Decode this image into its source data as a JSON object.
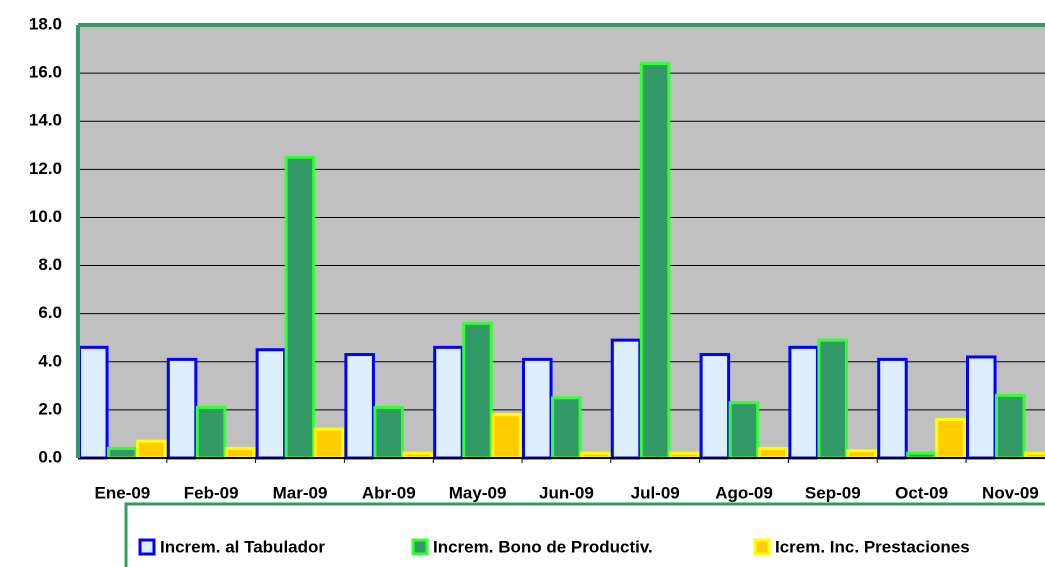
{
  "chart_data": {
    "type": "bar",
    "categories": [
      "Ene-09",
      "Feb-09",
      "Mar-09",
      "Abr-09",
      "May-09",
      "Jun-09",
      "Jul-09",
      "Ago-09",
      "Sep-09",
      "Oct-09",
      "Nov-09"
    ],
    "series": [
      {
        "name": "Increm. al Tabulador",
        "color": "#ddeeff",
        "stroke": "#0000ff",
        "values": [
          4.6,
          4.1,
          4.5,
          4.3,
          4.6,
          4.1,
          4.9,
          4.3,
          4.6,
          4.1,
          4.2
        ]
      },
      {
        "name": "Increm. Bono de Productiv.",
        "color": "#339966",
        "stroke": "#33ff33",
        "values": [
          0.4,
          2.1,
          12.5,
          2.1,
          5.6,
          2.5,
          16.4,
          2.3,
          4.9,
          0.2,
          2.6
        ]
      },
      {
        "name": "Icrem. Inc. Prestaciones",
        "color": "#ffcc00",
        "stroke": "#ffff00",
        "values": [
          0.7,
          0.4,
          1.2,
          0.2,
          1.8,
          0.2,
          0.2,
          0.4,
          0.3,
          1.6,
          0.2
        ]
      }
    ],
    "ylim": [
      0,
      18
    ],
    "yticks": [
      {
        "value": 0,
        "label": "0.0"
      },
      {
        "value": 2,
        "label": "2.0"
      },
      {
        "value": 4,
        "label": "4.0"
      },
      {
        "value": 6,
        "label": "6.0"
      },
      {
        "value": 8,
        "label": "8.0"
      },
      {
        "value": 10,
        "label": "10.0"
      },
      {
        "value": 12,
        "label": "12.0"
      },
      {
        "value": 14,
        "label": "14.0"
      },
      {
        "value": 16,
        "label": "16.0"
      },
      {
        "value": 18,
        "label": "18.0"
      }
    ],
    "grid": true,
    "plot_background": "#c0c0c0"
  }
}
